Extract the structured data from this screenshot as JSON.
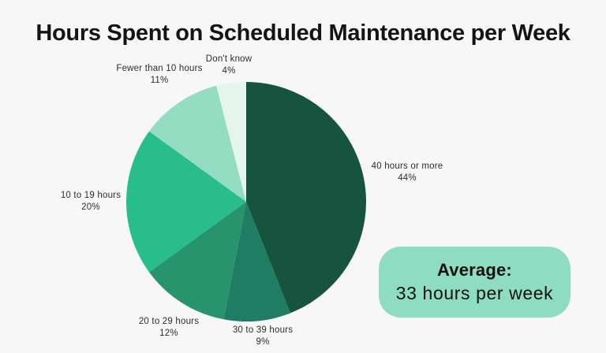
{
  "page": {
    "background": "#f7f7f8",
    "title": "Hours Spent on Scheduled Maintenance per Week"
  },
  "chart_data": {
    "type": "pie",
    "title": "Hours Spent on Scheduled Maintenance per Week",
    "start_angle_deg": 0,
    "direction": "clockwise",
    "legend_position": "outside-labels",
    "segments": [
      {
        "label": "40 hours or more",
        "value": 44,
        "pct_label": "44%",
        "color": "#175440"
      },
      {
        "label": "30 to 39 hours",
        "value": 9,
        "pct_label": "9%",
        "color": "#1e7d62"
      },
      {
        "label": "20 to 29 hours",
        "value": 12,
        "pct_label": "12%",
        "color": "#27946d"
      },
      {
        "label": "10 to 19 hours",
        "value": 20,
        "pct_label": "20%",
        "color": "#2abd8c"
      },
      {
        "label": "Fewer than 10 hours",
        "value": 11,
        "pct_label": "11%",
        "color": "#95ddc2"
      },
      {
        "label": "Don't know",
        "value": 4,
        "pct_label": "4%",
        "color": "#e4f5ee"
      }
    ],
    "annotation": {
      "heading": "Average:",
      "text": "33 hours per week",
      "background": "#8edcc1"
    }
  }
}
